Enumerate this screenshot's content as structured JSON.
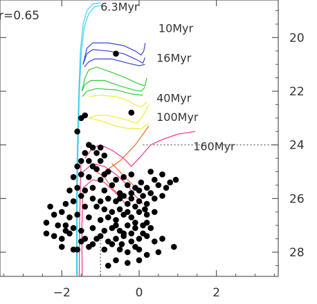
{
  "chart_data": {
    "type": "scatter",
    "title": "",
    "xlabel": "",
    "ylabel": "",
    "annotation": "r=0.65",
    "xlim": [
      -3.6,
      3.6
    ],
    "ylim": [
      28.9,
      18.6
    ],
    "y_inverted": true,
    "y_axis_side": "right",
    "x_ticks": [
      -2,
      0,
      2
    ],
    "y_ticks": [
      20,
      22,
      24,
      26,
      28
    ],
    "x_tick_labels": [
      "−2",
      "0",
      "2"
    ],
    "y_tick_labels": [
      "20",
      "22",
      "24",
      "26",
      "28"
    ],
    "grid": false,
    "reference_lines": [
      {
        "orientation": "horizontal",
        "y": 24,
        "from_x": 0.1,
        "to_x": 3.6,
        "style": "dotted"
      },
      {
        "orientation": "vertical",
        "x": -1.0,
        "from_y": 27.4,
        "to_y": 28.9,
        "style": "dotted"
      }
    ],
    "isochrones": [
      {
        "name": "6.3Myr",
        "color": "#44ccee",
        "label_at": [
          -1.0,
          19.0
        ],
        "lines": [
          [
            [
              -1.0,
              18.7
            ],
            [
              -1.2,
              18.75
            ],
            [
              -1.35,
              19.0
            ],
            [
              -1.45,
              19.5
            ],
            [
              -1.52,
              20.5
            ],
            [
              -1.56,
              22.0
            ],
            [
              -1.6,
              24.0
            ],
            [
              -1.62,
              26.0
            ],
            [
              -1.62,
              28.9
            ]
          ],
          [
            [
              -0.95,
              18.8
            ],
            [
              -1.15,
              18.85
            ],
            [
              -1.3,
              19.1
            ],
            [
              -1.42,
              19.6
            ],
            [
              -1.5,
              20.6
            ],
            [
              -1.55,
              22.2
            ],
            [
              -1.58,
              24.2
            ],
            [
              -1.6,
              26.0
            ],
            [
              -1.6,
              28.9
            ]
          ]
        ]
      },
      {
        "name": "10Myr",
        "color": "#3344dd",
        "label_at": [
          0.5,
          19.8
        ],
        "lines": [
          [
            [
              -1.45,
              21.0
            ],
            [
              -1.35,
              20.4
            ],
            [
              -1.2,
              20.2
            ],
            [
              -0.8,
              20.2
            ],
            [
              -0.4,
              20.3
            ],
            [
              -0.1,
              20.5
            ],
            [
              0.05,
              20.65
            ],
            [
              0.12,
              20.5
            ],
            [
              0.16,
              20.2
            ]
          ],
          [
            [
              -1.45,
              21.0
            ],
            [
              -1.35,
              20.6
            ],
            [
              -1.2,
              20.45
            ],
            [
              -0.8,
              20.5
            ],
            [
              -0.4,
              20.6
            ],
            [
              -0.1,
              20.8
            ],
            [
              0.1,
              20.95
            ],
            [
              0.15,
              20.75
            ]
          ],
          [
            [
              -1.42,
              21.1
            ],
            [
              -1.3,
              20.9
            ],
            [
              -1.15,
              20.8
            ],
            [
              -0.7,
              20.8
            ],
            [
              -0.3,
              20.95
            ],
            [
              0.0,
              21.05
            ],
            [
              0.15,
              21.0
            ]
          ]
        ]
      },
      {
        "name": "16Myr",
        "color": "#33cc33",
        "label_at": [
          0.45,
          20.9
        ],
        "lines": [
          [
            [
              -1.48,
              22.0
            ],
            [
              -1.4,
              21.5
            ],
            [
              -1.3,
              21.2
            ],
            [
              -1.1,
              21.1
            ],
            [
              -0.7,
              21.3
            ],
            [
              -0.35,
              21.5
            ],
            [
              -0.05,
              21.7
            ],
            [
              0.15,
              21.8
            ],
            [
              0.2,
              21.5
            ]
          ],
          [
            [
              -1.48,
              22.0
            ],
            [
              -1.4,
              21.75
            ],
            [
              -1.25,
              21.6
            ],
            [
              -0.9,
              21.6
            ],
            [
              -0.5,
              21.8
            ],
            [
              -0.15,
              21.95
            ],
            [
              0.05,
              22.0
            ],
            [
              0.15,
              21.85
            ]
          ],
          [
            [
              -1.47,
              22.2
            ],
            [
              -1.35,
              22.0
            ],
            [
              -1.1,
              21.9
            ],
            [
              -0.6,
              21.95
            ],
            [
              -0.2,
              22.1
            ],
            [
              0.1,
              22.15
            ]
          ]
        ]
      },
      {
        "name": "40Myr",
        "color": "#eeee33",
        "label_at": [
          0.45,
          22.4
        ],
        "lines": [
          [
            [
              -1.3,
              23.0
            ],
            [
              -1.1,
              22.9
            ],
            [
              -0.8,
              22.9
            ],
            [
              -0.5,
              23.0
            ],
            [
              -0.25,
              23.1
            ],
            [
              -0.05,
              23.2
            ],
            [
              0.1,
              22.9
            ],
            [
              0.25,
              22.5
            ]
          ],
          [
            [
              -1.3,
              23.0
            ],
            [
              -1.0,
              23.1
            ],
            [
              -0.6,
              23.3
            ],
            [
              -0.25,
              23.4
            ],
            [
              0.05,
              23.4
            ],
            [
              0.25,
              23.2
            ]
          ],
          [
            [
              -1.3,
              22.2
            ],
            [
              -1.0,
              22.15
            ],
            [
              -0.6,
              22.2
            ],
            [
              -0.3,
              22.35
            ],
            [
              -0.1,
              22.5
            ],
            [
              0.05,
              22.6
            ],
            [
              0.2,
              22.4
            ]
          ]
        ]
      },
      {
        "name": "100Myr",
        "color": "#ee6622",
        "label_at": [
          0.45,
          23.1
        ],
        "lines": [
          [
            [
              -0.9,
              25.0
            ],
            [
              -0.7,
              24.8
            ],
            [
              -0.5,
              24.6
            ],
            [
              -0.3,
              24.3
            ],
            [
              -0.1,
              24.0
            ],
            [
              0.1,
              23.6
            ],
            [
              0.25,
              23.3
            ]
          ],
          [
            [
              -1.1,
              25.0
            ],
            [
              -0.9,
              25.2
            ],
            [
              -0.7,
              25.6
            ],
            [
              -0.5,
              25.9
            ],
            [
              -0.3,
              26.0
            ]
          ],
          [
            [
              -0.7,
              24.7
            ],
            [
              -0.5,
              25.0
            ],
            [
              -0.3,
              25.3
            ],
            [
              -0.15,
              25.5
            ]
          ]
        ]
      },
      {
        "name": "160Myr",
        "color": "#ee3388",
        "label_at": [
          1.4,
          24.2
        ],
        "lines": [
          [
            [
              -1.4,
              24.5
            ],
            [
              -1.2,
              24.1
            ],
            [
              -1.0,
              24.0
            ],
            [
              -0.7,
              24.2
            ],
            [
              -0.4,
              24.5
            ],
            [
              -0.2,
              24.8
            ],
            [
              0.0,
              24.5
            ],
            [
              0.3,
              24.0
            ],
            [
              0.6,
              23.8
            ],
            [
              1.0,
              23.6
            ],
            [
              1.45,
              23.5
            ]
          ],
          [
            [
              -1.45,
              25.0
            ],
            [
              -1.2,
              24.7
            ],
            [
              -0.9,
              24.8
            ],
            [
              -0.6,
              25.1
            ],
            [
              -0.3,
              25.5
            ],
            [
              -0.1,
              25.9
            ],
            [
              0.1,
              26.2
            ]
          ],
          [
            [
              -1.45,
              25.6
            ],
            [
              -1.2,
              25.3
            ],
            [
              -0.9,
              25.4
            ],
            [
              -0.6,
              25.8
            ],
            [
              -0.35,
              26.2
            ]
          ],
          [
            [
              -1.46,
              26.0
            ],
            [
              -1.48,
              27.0
            ],
            [
              -1.48,
              28.0
            ],
            [
              -1.47,
              28.9
            ]
          ],
          [
            [
              -1.5,
              24.5
            ],
            [
              -1.52,
              25.5
            ],
            [
              -1.54,
              27.0
            ],
            [
              -1.55,
              28.9
            ]
          ]
        ]
      }
    ],
    "points": [
      [
        -0.6,
        20.6
      ],
      [
        -0.2,
        22.8
      ],
      [
        -1.5,
        23.0
      ],
      [
        -1.6,
        23.5
      ],
      [
        -1.4,
        22.9
      ],
      [
        -1.3,
        24.0
      ],
      [
        -1.2,
        24.1
      ],
      [
        -1.1,
        24.3
      ],
      [
        -1.0,
        24.1
      ],
      [
        -0.9,
        24.4
      ],
      [
        -1.4,
        24.3
      ],
      [
        -1.5,
        24.6
      ],
      [
        -1.3,
        24.6
      ],
      [
        -1.6,
        24.8
      ],
      [
        -1.2,
        24.8
      ],
      [
        -1.1,
        24.9
      ],
      [
        -0.8,
        25.0
      ],
      [
        -1.5,
        25.1
      ],
      [
        -1.7,
        25.2
      ],
      [
        -1.3,
        25.2
      ],
      [
        -1.0,
        25.3
      ],
      [
        -0.7,
        25.5
      ],
      [
        -1.6,
        25.6
      ],
      [
        -1.4,
        25.7
      ],
      [
        -1.2,
        25.6
      ],
      [
        -0.9,
        25.7
      ],
      [
        -0.5,
        25.8
      ],
      [
        -1.8,
        25.7
      ],
      [
        -1.5,
        25.9
      ],
      [
        -1.2,
        26.0
      ],
      [
        -1.0,
        26.1
      ],
      [
        -0.8,
        26.0
      ],
      [
        -0.6,
        26.1
      ],
      [
        -0.4,
        25.9
      ],
      [
        -1.9,
        26.2
      ],
      [
        -1.7,
        26.1
      ],
      [
        -1.4,
        26.3
      ],
      [
        -1.1,
        26.3
      ],
      [
        -0.9,
        26.4
      ],
      [
        -0.7,
        26.5
      ],
      [
        -0.5,
        26.4
      ],
      [
        -0.3,
        26.2
      ],
      [
        -0.2,
        25.8
      ],
      [
        -0.1,
        25.6
      ],
      [
        0.0,
        25.7
      ],
      [
        0.1,
        25.9
      ],
      [
        0.2,
        25.6
      ],
      [
        0.4,
        25.3
      ],
      [
        0.6,
        25.1
      ],
      [
        0.5,
        25.5
      ],
      [
        0.3,
        25.8
      ],
      [
        0.7,
        25.6
      ],
      [
        0.8,
        25.4
      ],
      [
        0.95,
        25.3
      ],
      [
        0.6,
        25.9
      ],
      [
        0.4,
        26.0
      ],
      [
        0.2,
        26.2
      ],
      [
        0.0,
        26.1
      ],
      [
        -0.1,
        26.3
      ],
      [
        -2.3,
        26.3
      ],
      [
        -2.2,
        26.6
      ],
      [
        -2.0,
        26.5
      ],
      [
        -1.8,
        26.7
      ],
      [
        -1.6,
        26.6
      ],
      [
        -1.3,
        26.7
      ],
      [
        -1.0,
        26.8
      ],
      [
        -0.8,
        26.7
      ],
      [
        -0.6,
        26.8
      ],
      [
        -0.4,
        26.6
      ],
      [
        -0.2,
        26.7
      ],
      [
        0.0,
        26.5
      ],
      [
        0.2,
        26.6
      ],
      [
        0.4,
        26.5
      ],
      [
        -2.4,
        26.9
      ],
      [
        -2.1,
        27.0
      ],
      [
        -1.9,
        27.0
      ],
      [
        -1.7,
        27.1
      ],
      [
        -1.5,
        27.2
      ],
      [
        -1.2,
        27.1
      ],
      [
        -0.9,
        27.2
      ],
      [
        -0.7,
        27.1
      ],
      [
        -0.5,
        27.2
      ],
      [
        -0.3,
        27.0
      ],
      [
        -0.1,
        27.1
      ],
      [
        0.1,
        27.0
      ],
      [
        0.3,
        27.1
      ],
      [
        -2.4,
        27.3
      ],
      [
        -2.2,
        27.4
      ],
      [
        -2.0,
        27.5
      ],
      [
        -1.8,
        27.3
      ],
      [
        -1.4,
        27.5
      ],
      [
        -1.1,
        27.5
      ],
      [
        -0.8,
        27.6
      ],
      [
        -0.6,
        27.5
      ],
      [
        -0.4,
        27.4
      ],
      [
        -0.2,
        27.6
      ],
      [
        0.0,
        27.5
      ],
      [
        0.2,
        27.4
      ],
      [
        0.4,
        27.6
      ],
      [
        0.6,
        27.5
      ],
      [
        -2.0,
        27.8
      ],
      [
        -1.7,
        27.9
      ],
      [
        -1.3,
        27.8
      ],
      [
        -0.9,
        27.9
      ],
      [
        -0.5,
        27.9
      ],
      [
        -0.3,
        28.0
      ],
      [
        0.0,
        27.9
      ],
      [
        0.2,
        28.1
      ],
      [
        0.5,
        28.0
      ],
      [
        0.9,
        27.8
      ],
      [
        -0.6,
        28.3
      ],
      [
        -0.3,
        28.4
      ],
      [
        0.0,
        28.3
      ],
      [
        -0.8,
        28.5
      ],
      [
        -1.0,
        24.6
      ],
      [
        -0.9,
        25.1
      ],
      [
        -0.6,
        25.3
      ],
      [
        -0.4,
        25.2
      ],
      [
        -0.3,
        25.5
      ],
      [
        -0.2,
        25.1
      ],
      [
        0.05,
        25.4
      ],
      [
        0.3,
        25.0
      ],
      [
        -0.5,
        26.0
      ],
      [
        -0.2,
        26.0
      ],
      [
        0.15,
        26.4
      ],
      [
        -0.3,
        26.5
      ],
      [
        -0.1,
        26.9
      ],
      [
        0.2,
        26.9
      ],
      [
        -0.4,
        27.3
      ],
      [
        -0.6,
        27.0
      ],
      [
        -0.2,
        27.3
      ],
      [
        0.1,
        27.3
      ],
      [
        -0.7,
        27.7
      ],
      [
        -0.45,
        27.7
      ],
      [
        -0.1,
        27.8
      ],
      [
        -1.0,
        27.4
      ],
      [
        -1.2,
        27.7
      ],
      [
        -1.5,
        27.6
      ],
      [
        -1.6,
        27.9
      ],
      [
        -1.9,
        27.2
      ]
    ]
  }
}
